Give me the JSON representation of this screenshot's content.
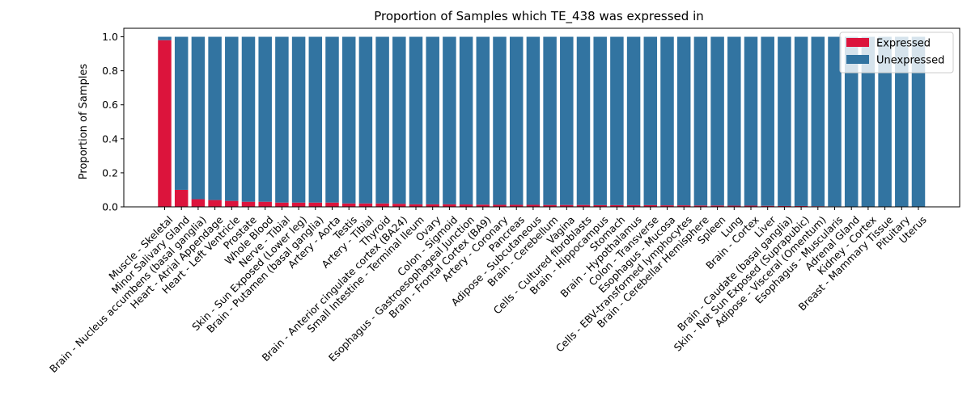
{
  "chart_data": {
    "type": "bar",
    "stacked": true,
    "title": "Proportion of Samples which TE_438 was expressed in",
    "xlabel": "",
    "ylabel": "Proportion of Samples",
    "ylim": [
      0,
      1.05
    ],
    "yticks": [
      "0.0",
      "0.2",
      "0.4",
      "0.6",
      "0.8",
      "1.0"
    ],
    "legend_position": "top-right",
    "grid": false,
    "categories": [
      "Muscle - Skeletal",
      "Minor Salivary Gland",
      "Brain - Nucleus accumbens (basal ganglia)",
      "Heart - Atrial Appendage",
      "Heart - Left Ventricle",
      "Prostate",
      "Whole Blood",
      "Nerve - Tibial",
      "Skin - Sun Exposed (Lower leg)",
      "Brain - Putamen (basal ganglia)",
      "Artery - Aorta",
      "Testis",
      "Artery - Tibial",
      "Thyroid",
      "Brain - Anterior cingulate cortex (BA24)",
      "Small Intestine - Terminal Ileum",
      "Ovary",
      "Colon - Sigmoid",
      "Esophagus - Gastroesophageal Junction",
      "Brain - Frontal Cortex (BA9)",
      "Artery - Coronary",
      "Pancreas",
      "Adipose - Subcutaneous",
      "Brain - Cerebellum",
      "Vagina",
      "Cells - Cultured fibroblasts",
      "Brain - Hippocampus",
      "Stomach",
      "Brain - Hypothalamus",
      "Colon - Transverse",
      "Esophagus - Mucosa",
      "Cells - EBV-transformed lymphocytes",
      "Brain - Cerebellar Hemisphere",
      "Spleen",
      "Lung",
      "Brain - Cortex",
      "Liver",
      "Brain - Caudate (basal ganglia)",
      "Skin - Not Sun Exposed (Suprapubic)",
      "Adipose - Visceral (Omentum)",
      "Esophagus - Muscularis",
      "Adrenal Gland",
      "Kidney - Cortex",
      "Breast - Mammary Tissue",
      "Pituitary",
      "Uterus"
    ],
    "series": [
      {
        "name": "Expressed",
        "color": "#dc143c",
        "values": [
          0.98,
          0.1,
          0.045,
          0.04,
          0.035,
          0.03,
          0.03,
          0.025,
          0.025,
          0.025,
          0.025,
          0.02,
          0.02,
          0.02,
          0.018,
          0.015,
          0.015,
          0.015,
          0.014,
          0.013,
          0.012,
          0.012,
          0.012,
          0.011,
          0.011,
          0.011,
          0.01,
          0.01,
          0.01,
          0.01,
          0.009,
          0.009,
          0.008,
          0.008,
          0.007,
          0.007,
          0.006,
          0.005,
          0.005,
          0.004,
          0.003,
          0,
          0,
          0,
          0,
          0
        ]
      },
      {
        "name": "Unexpressed",
        "color": "#3274a1",
        "values": [
          0.02,
          0.9,
          0.955,
          0.96,
          0.965,
          0.97,
          0.97,
          0.975,
          0.975,
          0.975,
          0.975,
          0.98,
          0.98,
          0.98,
          0.982,
          0.985,
          0.985,
          0.985,
          0.986,
          0.987,
          0.988,
          0.988,
          0.988,
          0.989,
          0.989,
          0.989,
          0.99,
          0.99,
          0.99,
          0.99,
          0.991,
          0.991,
          0.992,
          0.992,
          0.993,
          0.993,
          0.994,
          0.995,
          0.995,
          0.996,
          0.997,
          1.0,
          1.0,
          1.0,
          1.0,
          1.0
        ]
      }
    ]
  }
}
